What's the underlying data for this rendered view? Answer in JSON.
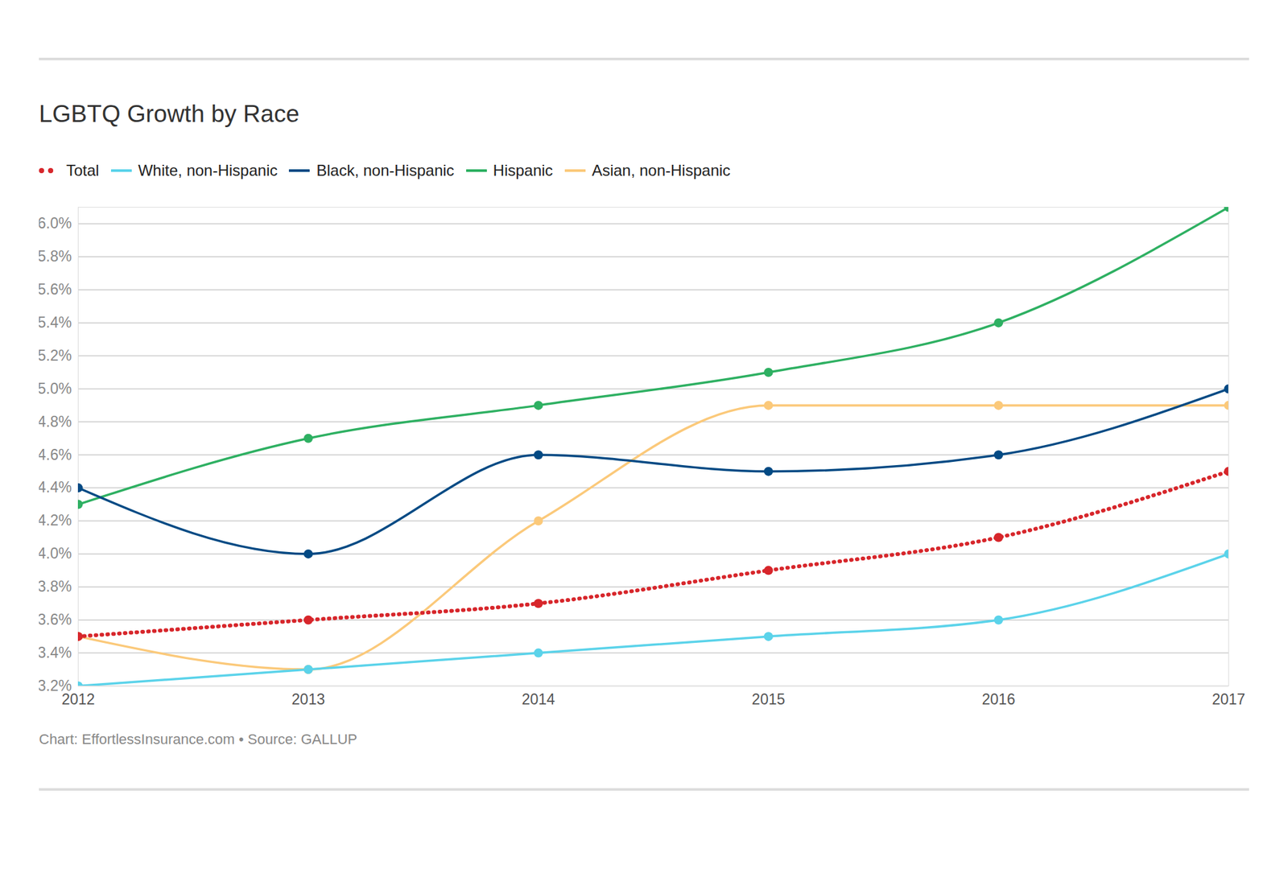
{
  "chart_data": {
    "type": "line",
    "title": "LGBTQ Growth by Race",
    "caption": "Chart: EffortlessInsurance.com • Source: GALLUP",
    "x": [
      2012,
      2013,
      2014,
      2015,
      2016,
      2017
    ],
    "xlim": [
      2012,
      2017
    ],
    "xticks": [
      2012,
      2013,
      2014,
      2015,
      2016,
      2017
    ],
    "ylim": [
      3.2,
      6.1
    ],
    "yticks": [
      {
        "value": 3.2,
        "label": "3.2%"
      },
      {
        "value": 3.4,
        "label": "3.4%"
      },
      {
        "value": 3.6,
        "label": "3.6%"
      },
      {
        "value": 3.8,
        "label": "3.8%"
      },
      {
        "value": 4.0,
        "label": "4.0%"
      },
      {
        "value": 4.2,
        "label": "4.2%"
      },
      {
        "value": 4.4,
        "label": "4.4%"
      },
      {
        "value": 4.6,
        "label": "4.6%"
      },
      {
        "value": 4.8,
        "label": "4.8%"
      },
      {
        "value": 5.0,
        "label": "5.0%"
      },
      {
        "value": 5.2,
        "label": "5.2%"
      },
      {
        "value": 5.4,
        "label": "5.4%"
      },
      {
        "value": 5.6,
        "label": "5.6%"
      },
      {
        "value": 5.8,
        "label": "5.8%"
      },
      {
        "value": 6.0,
        "label": "6.0%"
      }
    ],
    "grid": true,
    "legend": "top",
    "series": [
      {
        "name": "Total",
        "color": "#d7262b",
        "line_style": "dotted",
        "marker": "circle",
        "values": [
          3.5,
          3.6,
          3.7,
          3.9,
          4.1,
          4.5
        ]
      },
      {
        "name": "White, non-Hispanic",
        "color": "#5bd3ea",
        "line_style": "solid",
        "marker": "circle",
        "values": [
          3.2,
          3.3,
          3.4,
          3.5,
          3.6,
          4.0
        ]
      },
      {
        "name": "Black, non-Hispanic",
        "color": "#034a84",
        "line_style": "solid",
        "marker": "circle",
        "values": [
          4.4,
          4.0,
          4.6,
          4.5,
          4.6,
          5.0
        ]
      },
      {
        "name": "Hispanic",
        "color": "#2eb062",
        "line_style": "solid",
        "marker": "circle",
        "values": [
          4.3,
          4.7,
          4.9,
          5.1,
          5.4,
          6.1
        ]
      },
      {
        "name": "Asian, non-Hispanic",
        "color": "#fbc97a",
        "line_style": "solid",
        "marker": "circle",
        "values": [
          3.5,
          3.3,
          4.2,
          4.9,
          4.9,
          4.9
        ]
      }
    ]
  }
}
